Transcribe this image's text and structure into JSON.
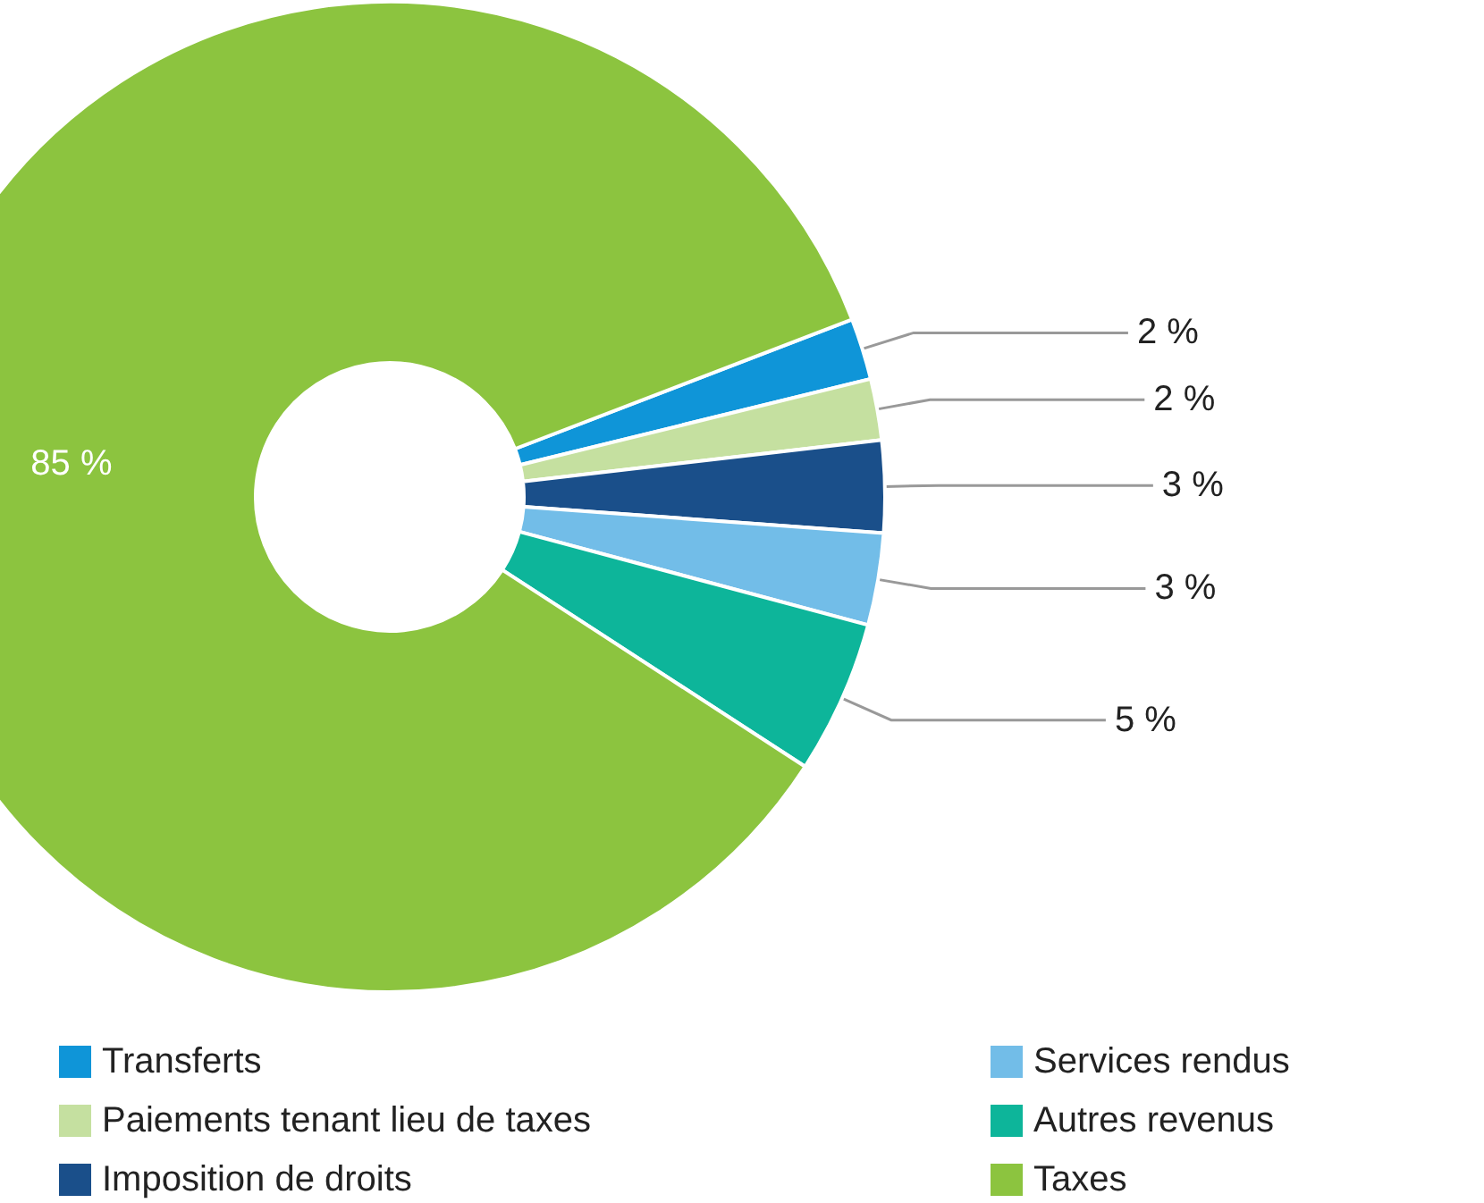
{
  "chart_data": {
    "type": "donut",
    "categories": [
      "Transferts",
      "Paiements tenant lieu de taxes",
      "Imposition de droits",
      "Services rendus",
      "Autres revenus",
      "Taxes"
    ],
    "values": [
      2,
      2,
      3,
      3,
      5,
      85
    ],
    "value_labels": [
      "2 %",
      "2 %",
      "3 %",
      "3 %",
      "5 %",
      "85 %"
    ],
    "colors": [
      "#0f95d8",
      "#c5e0a0",
      "#1a4f8a",
      "#72bde8",
      "#0db59a",
      "#8cc43f"
    ],
    "legend": "bottom"
  }
}
